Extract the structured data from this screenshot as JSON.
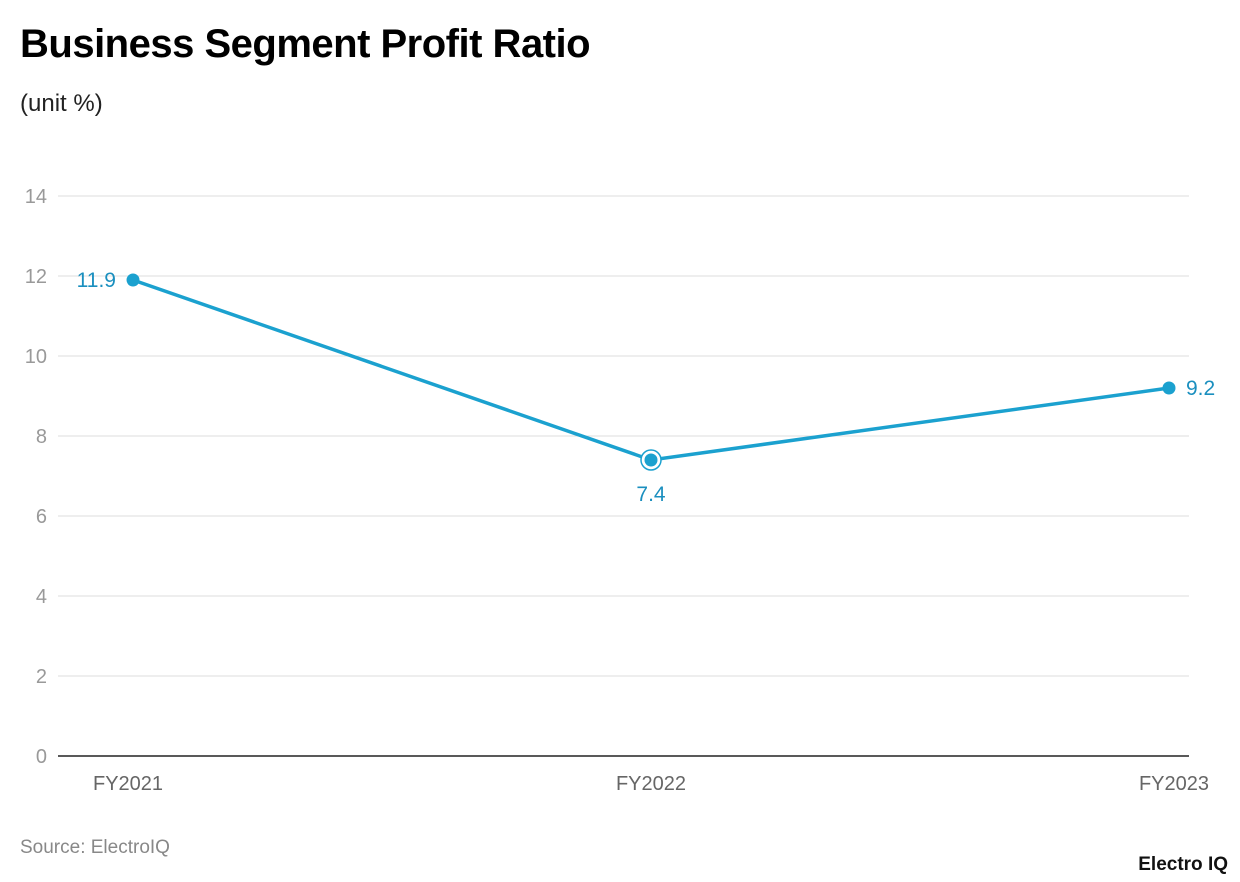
{
  "title": "Business Segment Profit Ratio",
  "subtitle": "(unit %)",
  "source": "Source: ElectroIQ",
  "logo": "Electro IQ",
  "chart_data": {
    "type": "line",
    "title": "Business Segment Profit Ratio",
    "subtitle": "(unit %)",
    "categories": [
      "FY2021",
      "FY2022",
      "FY2023"
    ],
    "series": [
      {
        "values": [
          11.9,
          7.4,
          9.2
        ],
        "color": "#1ba1cf"
      }
    ],
    "data_labels": [
      "11.9",
      "7.4",
      "9.2"
    ],
    "ylim": [
      0,
      14
    ],
    "yticks": [
      0,
      2,
      4,
      6,
      8,
      10,
      12,
      14
    ],
    "grid": true,
    "highlighted_point": "FY2022"
  }
}
